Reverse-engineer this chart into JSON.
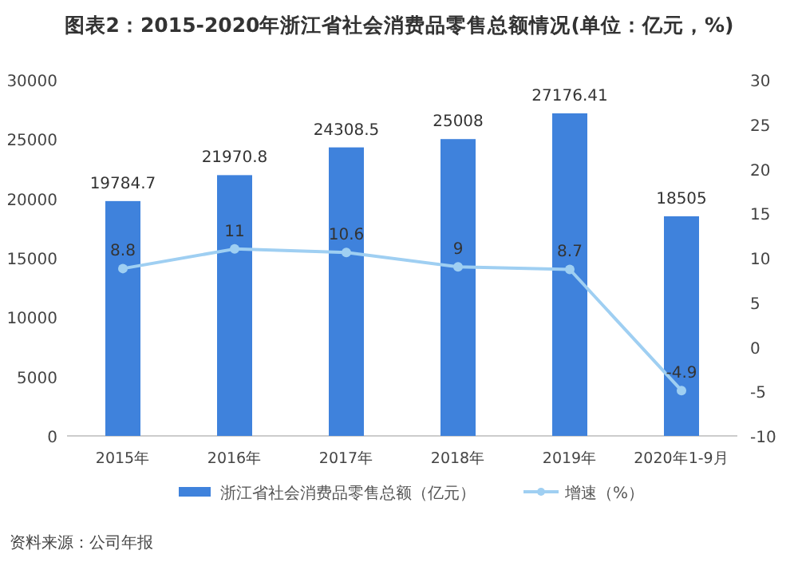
{
  "chart_data": {
    "type": "bar",
    "title": "图表2：2015-2020年浙江省社会消费品零售总额情况(单位：亿元，%)",
    "categories": [
      "2015年",
      "2016年",
      "2017年",
      "2018年",
      "2019年",
      "2020年1-9月"
    ],
    "series": [
      {
        "name": "浙江省社会消费品零售总额（亿元）",
        "color": "#3f82dc",
        "values": [
          19784.7,
          21970.8,
          24308.5,
          25008,
          27176.41,
          18505
        ]
      },
      {
        "name": "增速（%）",
        "type": "line",
        "axis": "y2",
        "color": "#9fcff2",
        "values": [
          8.8,
          11,
          10.6,
          9,
          8.7,
          -4.9
        ]
      }
    ],
    "ylim": [
      0,
      30000
    ],
    "yticks": [
      0,
      5000,
      10000,
      15000,
      20000,
      25000,
      30000
    ],
    "y2lim": [
      -10,
      30
    ],
    "y2ticks": [
      -10,
      -5,
      0,
      5,
      10,
      15,
      20,
      25,
      30
    ],
    "data_labels": true,
    "legend": "bottom",
    "marker": "circle",
    "annotations": [
      "资料来源：公司年报"
    ]
  }
}
